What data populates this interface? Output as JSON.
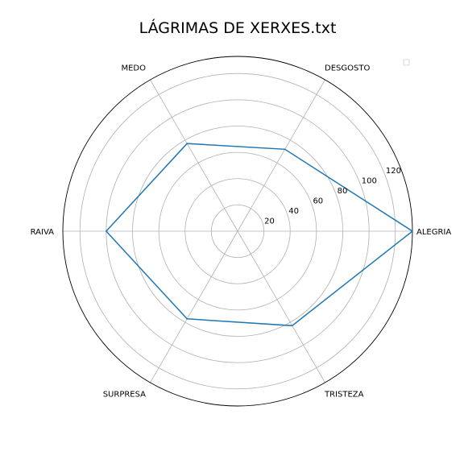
{
  "chart_data": {
    "type": "radar",
    "title": "LÁGRIMAS DE XERXES.txt",
    "categories": [
      "ALEGRIA",
      "DESGOSTO",
      "MEDO",
      "RAIVA",
      "SURPRESA",
      "TRISTEZA"
    ],
    "series": [
      {
        "values": [
          133,
          72,
          77,
          100,
          77,
          83
        ],
        "color": "#1f77b4"
      }
    ],
    "r_ticks": [
      "20",
      "40",
      "60",
      "80",
      "100",
      "120"
    ],
    "rlim": [
      0,
      133
    ],
    "grid": true,
    "legend": "top-right",
    "legend_entries": []
  }
}
